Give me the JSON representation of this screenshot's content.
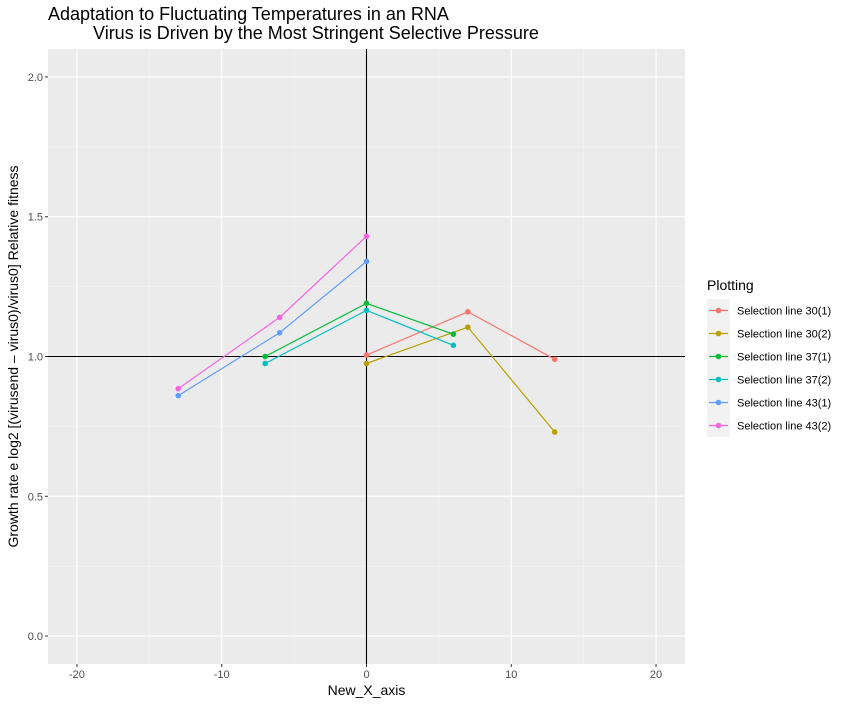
{
  "chart_data": {
    "type": "line",
    "title_line1": "Adaptation to Fluctuating Temperatures in an RNA",
    "title_line2": "         Virus is Driven by the Most Stringent Selective Pressure",
    "xlabel": "New_X_axis",
    "ylabel": "Growth rate e log2 [(virusend – virus0)/virus0]  Relative fitness",
    "xlim": [
      -22,
      22
    ],
    "ylim": [
      -0.1,
      2.1
    ],
    "xticks": [
      -20,
      -10,
      0,
      10,
      20
    ],
    "xtick_labels": [
      "-20",
      "-10",
      "0",
      "10",
      "20"
    ],
    "yticks": [
      0.0,
      0.5,
      1.0,
      1.5,
      2.0
    ],
    "ytick_labels": [
      "0.0",
      "0.5",
      "1.0",
      "1.5",
      "2.0"
    ],
    "reference_lines": {
      "vertical_x": 0,
      "horizontal_y": 1.0
    },
    "grid": true,
    "background": "#EBEBEB",
    "legend_title": "Plotting",
    "legend_position": "right",
    "series": [
      {
        "name": "Selection line 30(1)",
        "color": "#F8766D",
        "points": [
          [
            0,
            1.005
          ],
          [
            7,
            1.16
          ],
          [
            13,
            0.99
          ]
        ]
      },
      {
        "name": "Selection line 30(2)",
        "color": "#B79F00",
        "points": [
          [
            0,
            0.975
          ],
          [
            7,
            1.105
          ],
          [
            13,
            0.73
          ]
        ]
      },
      {
        "name": "Selection line 37(1)",
        "color": "#00BA38",
        "points": [
          [
            -7,
            1.0
          ],
          [
            0,
            1.19
          ],
          [
            6,
            1.08
          ]
        ]
      },
      {
        "name": "Selection line 37(2)",
        "color": "#00BFC4",
        "points": [
          [
            -7,
            0.975
          ],
          [
            0,
            1.165
          ],
          [
            6,
            1.04
          ]
        ]
      },
      {
        "name": "Selection line 43(1)",
        "color": "#619CFF",
        "points": [
          [
            -13,
            0.86
          ],
          [
            -6,
            1.085
          ],
          [
            0,
            1.34
          ]
        ]
      },
      {
        "name": "Selection line 43(2)",
        "color": "#F564E3",
        "points": [
          [
            -13,
            0.885
          ],
          [
            -6,
            1.14
          ],
          [
            0,
            1.43
          ]
        ]
      }
    ]
  }
}
